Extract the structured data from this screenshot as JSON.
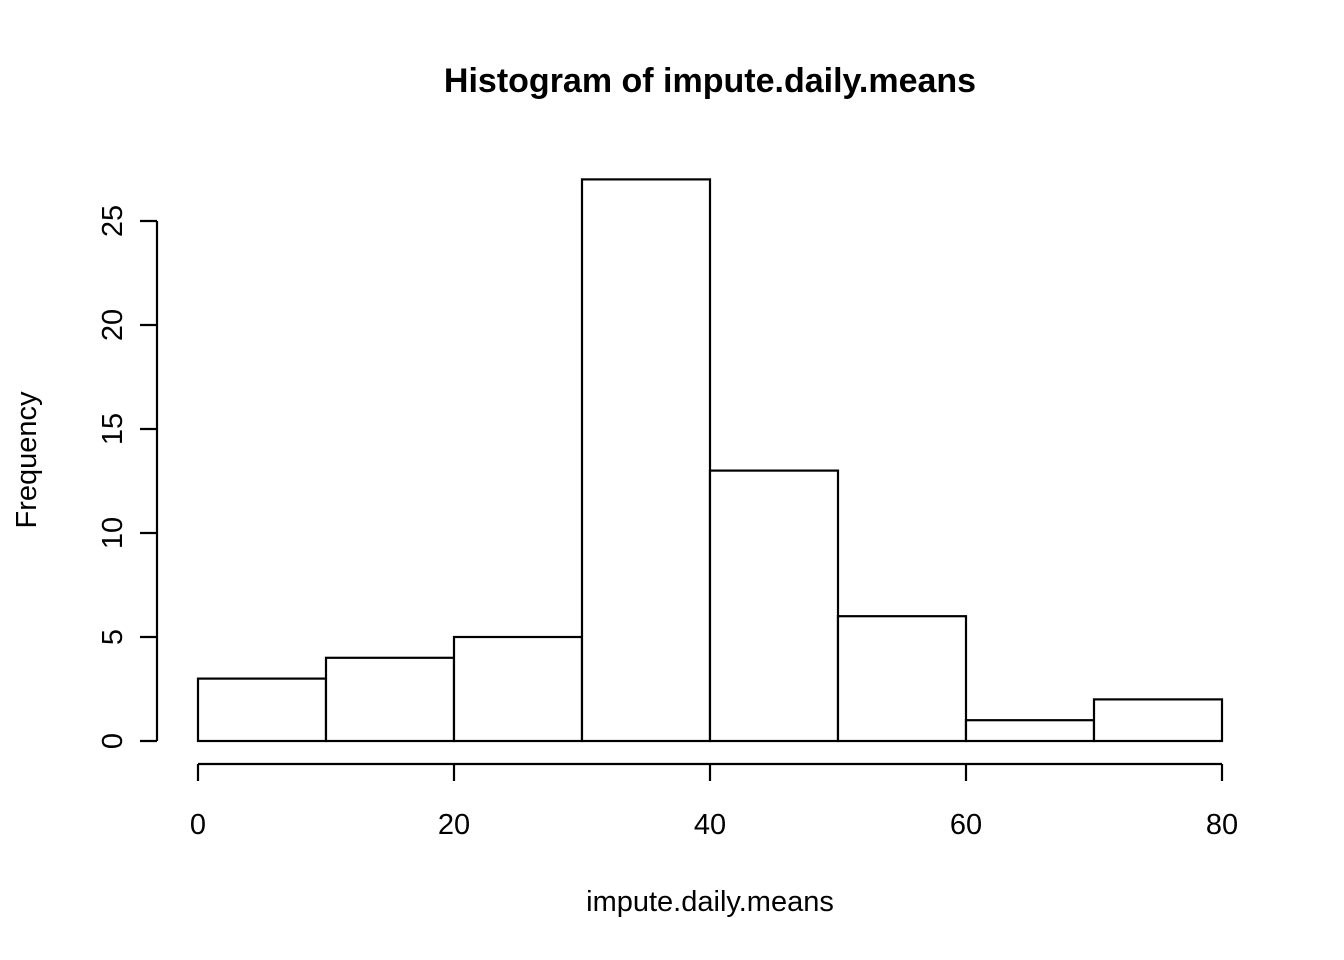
{
  "chart_data": {
    "type": "bar",
    "title": "Histogram of impute.daily.means",
    "xlabel": "impute.daily.means",
    "ylabel": "Frequency",
    "bins": [
      {
        "start": 0,
        "end": 10,
        "count": 3
      },
      {
        "start": 10,
        "end": 20,
        "count": 4
      },
      {
        "start": 20,
        "end": 30,
        "count": 5
      },
      {
        "start": 30,
        "end": 40,
        "count": 27
      },
      {
        "start": 40,
        "end": 50,
        "count": 13
      },
      {
        "start": 50,
        "end": 60,
        "count": 6
      },
      {
        "start": 60,
        "end": 70,
        "count": 1
      },
      {
        "start": 70,
        "end": 80,
        "count": 2
      }
    ],
    "xlim": [
      0,
      80
    ],
    "ylim": [
      0,
      27
    ],
    "x_ticks": [
      "0",
      "20",
      "40",
      "60",
      "80"
    ],
    "y_ticks": [
      "0",
      "5",
      "10",
      "15",
      "20",
      "25"
    ],
    "grid": false,
    "colors": {
      "bar_fill": "#ffffff",
      "bar_stroke": "#000000"
    }
  }
}
